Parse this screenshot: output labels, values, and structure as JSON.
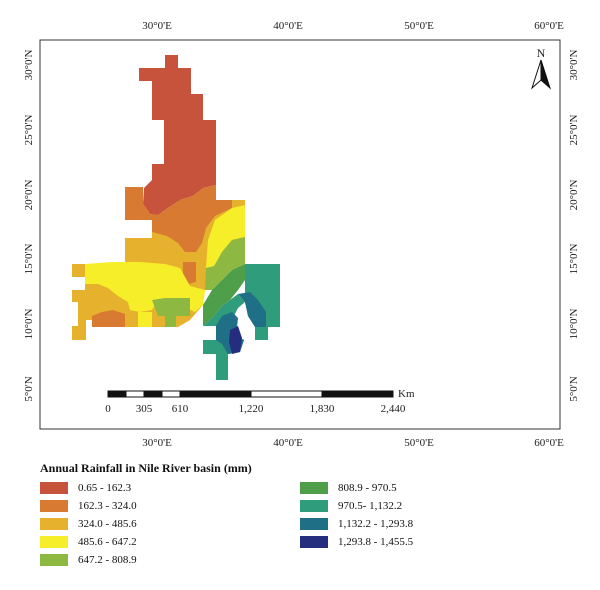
{
  "map": {
    "lon_labels": [
      "30°0'E",
      "40°0'E",
      "50°0'E",
      "60°0'E"
    ],
    "lat_labels": [
      "30°0'N",
      "25°0'N",
      "20°0'N",
      "15°0'N",
      "10°0'N",
      "5°0'N"
    ],
    "north_label": "N",
    "scale_bar": {
      "unit": "Km",
      "ticks": [
        "0",
        "305",
        "610",
        "1,220",
        "1,830",
        "2,440"
      ]
    },
    "legend": {
      "title": "Annual Rainfall in Nile River basin (mm)",
      "classes": [
        {
          "label": "0.65 - 162.3",
          "color": "#c8533c"
        },
        {
          "label": "162.3 - 324.0",
          "color": "#d97a32"
        },
        {
          "label": "324.0 - 485.6",
          "color": "#e6b12c"
        },
        {
          "label": "485.6 - 647.2",
          "color": "#f7ee2a"
        },
        {
          "label": "647.2 - 808.9",
          "color": "#8db842"
        },
        {
          "label": "808.9 - 970.5",
          "color": "#4f9e49"
        },
        {
          "label": "970.5- 1,132.2",
          "color": "#2f9c7c"
        },
        {
          "label": "1,132.2 - 1,293.8",
          "color": "#1f6f86"
        },
        {
          "label": "1,293.8 - 1,455.5",
          "color": "#252d7e"
        }
      ]
    }
  }
}
